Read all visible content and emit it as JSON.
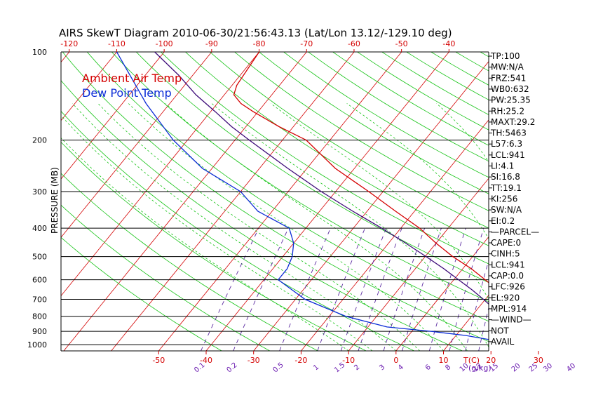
{
  "title": "AIRS SkewT Diagram 2010-06-30/21:56:43.13 (Lat/Lon 13.12/-129.10 deg)",
  "colors": {
    "temp": "#d40000",
    "dew": "#0a2bd6",
    "parcel": "#3c0a78",
    "dry_adiabat": "#17c417",
    "moist_adiabat": "#17c417",
    "isotherm": "#d40000",
    "mixing_ratio": "#5a2aa0",
    "tick_red": "#d40000",
    "tick_purple": "#6a1ab0"
  },
  "chart_data": {
    "type": "line",
    "title": "AIRS SkewT Diagram 2010-06-30/21:56:43.13 (Lat/Lon 13.12/-129.10 deg)",
    "ylabel": "PRESSURE (MB)",
    "xlabel": "T(C)",
    "mixing_ratio_label": "g/kg",
    "pressure_range": [
      1050,
      100
    ],
    "pressure_ticks": [
      "100",
      "200",
      "300",
      "400",
      "500",
      "600",
      "700",
      "800",
      "900",
      "1000"
    ],
    "top_temp_ticks": [
      "-120",
      "-110",
      "-100",
      "-90",
      "-80",
      "-70",
      "-60",
      "-50",
      "-40"
    ],
    "bottom_temp_ticks": [
      "-50",
      "-40",
      "-30",
      "-20",
      "-10",
      "0",
      "10",
      "20",
      "30"
    ],
    "mixing_ratio_ticks": [
      "0.1",
      "0.2",
      "0.5",
      "1",
      "1.5",
      "2",
      "3",
      "4",
      "6",
      "8",
      "10",
      "12",
      "15",
      "20",
      "25",
      "30",
      "40"
    ],
    "legend": [
      "Ambient Air Temp",
      "Dew Point Temp"
    ],
    "grid": true,
    "series": [
      {
        "name": "Ambient Air Temp",
        "points": [
          [
            1010,
            25.4
          ],
          [
            1000,
            24.2
          ],
          [
            985,
            22.6
          ],
          [
            960,
            21.2
          ],
          [
            930,
            21.0
          ],
          [
            900,
            22.0
          ],
          [
            850,
            22.0
          ],
          [
            800,
            21.0
          ],
          [
            750,
            19.0
          ],
          [
            700,
            15.2
          ],
          [
            650,
            11.0
          ],
          [
            600,
            6.6
          ],
          [
            550,
            1.8
          ],
          [
            500,
            -4.2
          ],
          [
            450,
            -10.0
          ],
          [
            400,
            -16.0
          ],
          [
            350,
            -24.0
          ],
          [
            300,
            -33.0
          ],
          [
            250,
            -44.0
          ],
          [
            200,
            -55.0
          ],
          [
            180,
            -63.0
          ],
          [
            160,
            -71.0
          ],
          [
            150,
            -75.0
          ],
          [
            140,
            -78.0
          ],
          [
            130,
            -79.0
          ],
          [
            100,
            -80.0
          ]
        ]
      },
      {
        "name": "Dew Point Temp",
        "points": [
          [
            1010,
            24.2
          ],
          [
            1000,
            22.6
          ],
          [
            985,
            20.2
          ],
          [
            960,
            17.6
          ],
          [
            930,
            12.0
          ],
          [
            900,
            4.0
          ],
          [
            870,
            -6.0
          ],
          [
            800,
            -16.5
          ],
          [
            700,
            -28.0
          ],
          [
            600,
            -37.0
          ],
          [
            550,
            -37.0
          ],
          [
            500,
            -38.0
          ],
          [
            450,
            -40.0
          ],
          [
            400,
            -43.5
          ],
          [
            350,
            -53.0
          ],
          [
            300,
            -60.0
          ],
          [
            250,
            -72.0
          ],
          [
            200,
            -83.0
          ],
          [
            150,
            -95.0
          ],
          [
            100,
            -110.0
          ]
        ]
      },
      {
        "name": "Parcel",
        "points": [
          [
            1010,
            25.4
          ],
          [
            941,
            24.0
          ],
          [
            900,
            21.8
          ],
          [
            850,
            19.2
          ],
          [
            800,
            16.3
          ],
          [
            750,
            13.2
          ],
          [
            700,
            9.6
          ],
          [
            650,
            5.6
          ],
          [
            600,
            1.0
          ],
          [
            550,
            -4.0
          ],
          [
            500,
            -9.8
          ],
          [
            450,
            -16.4
          ],
          [
            400,
            -24.0
          ],
          [
            350,
            -33.0
          ],
          [
            300,
            -43.0
          ],
          [
            250,
            -54.0
          ],
          [
            200,
            -67.0
          ],
          [
            180,
            -73.0
          ],
          [
            160,
            -79.0
          ],
          [
            140,
            -86.0
          ],
          [
            120,
            -93.0
          ],
          [
            100,
            -102.0
          ]
        ]
      }
    ],
    "stats": [
      "TP:100",
      "MW:N/A",
      "FRZ:541",
      "WB0:632",
      "PW:25.35",
      "RH:25.2",
      "MAXT:29.2",
      "TH:5463",
      "L57:6.3",
      "LCL:941",
      "LI:4.1",
      "SI:16.8",
      "TT:19.1",
      "KI:256",
      "SW:N/A",
      "EI:0.2",
      "—PARCEL—",
      "CAPE:0",
      "CINH:5",
      "LCL:941",
      "CAP:0.0",
      "LFC:926",
      "EL:920",
      "MPL:914",
      "—WIND—",
      "NOT",
      "AVAIL"
    ]
  }
}
